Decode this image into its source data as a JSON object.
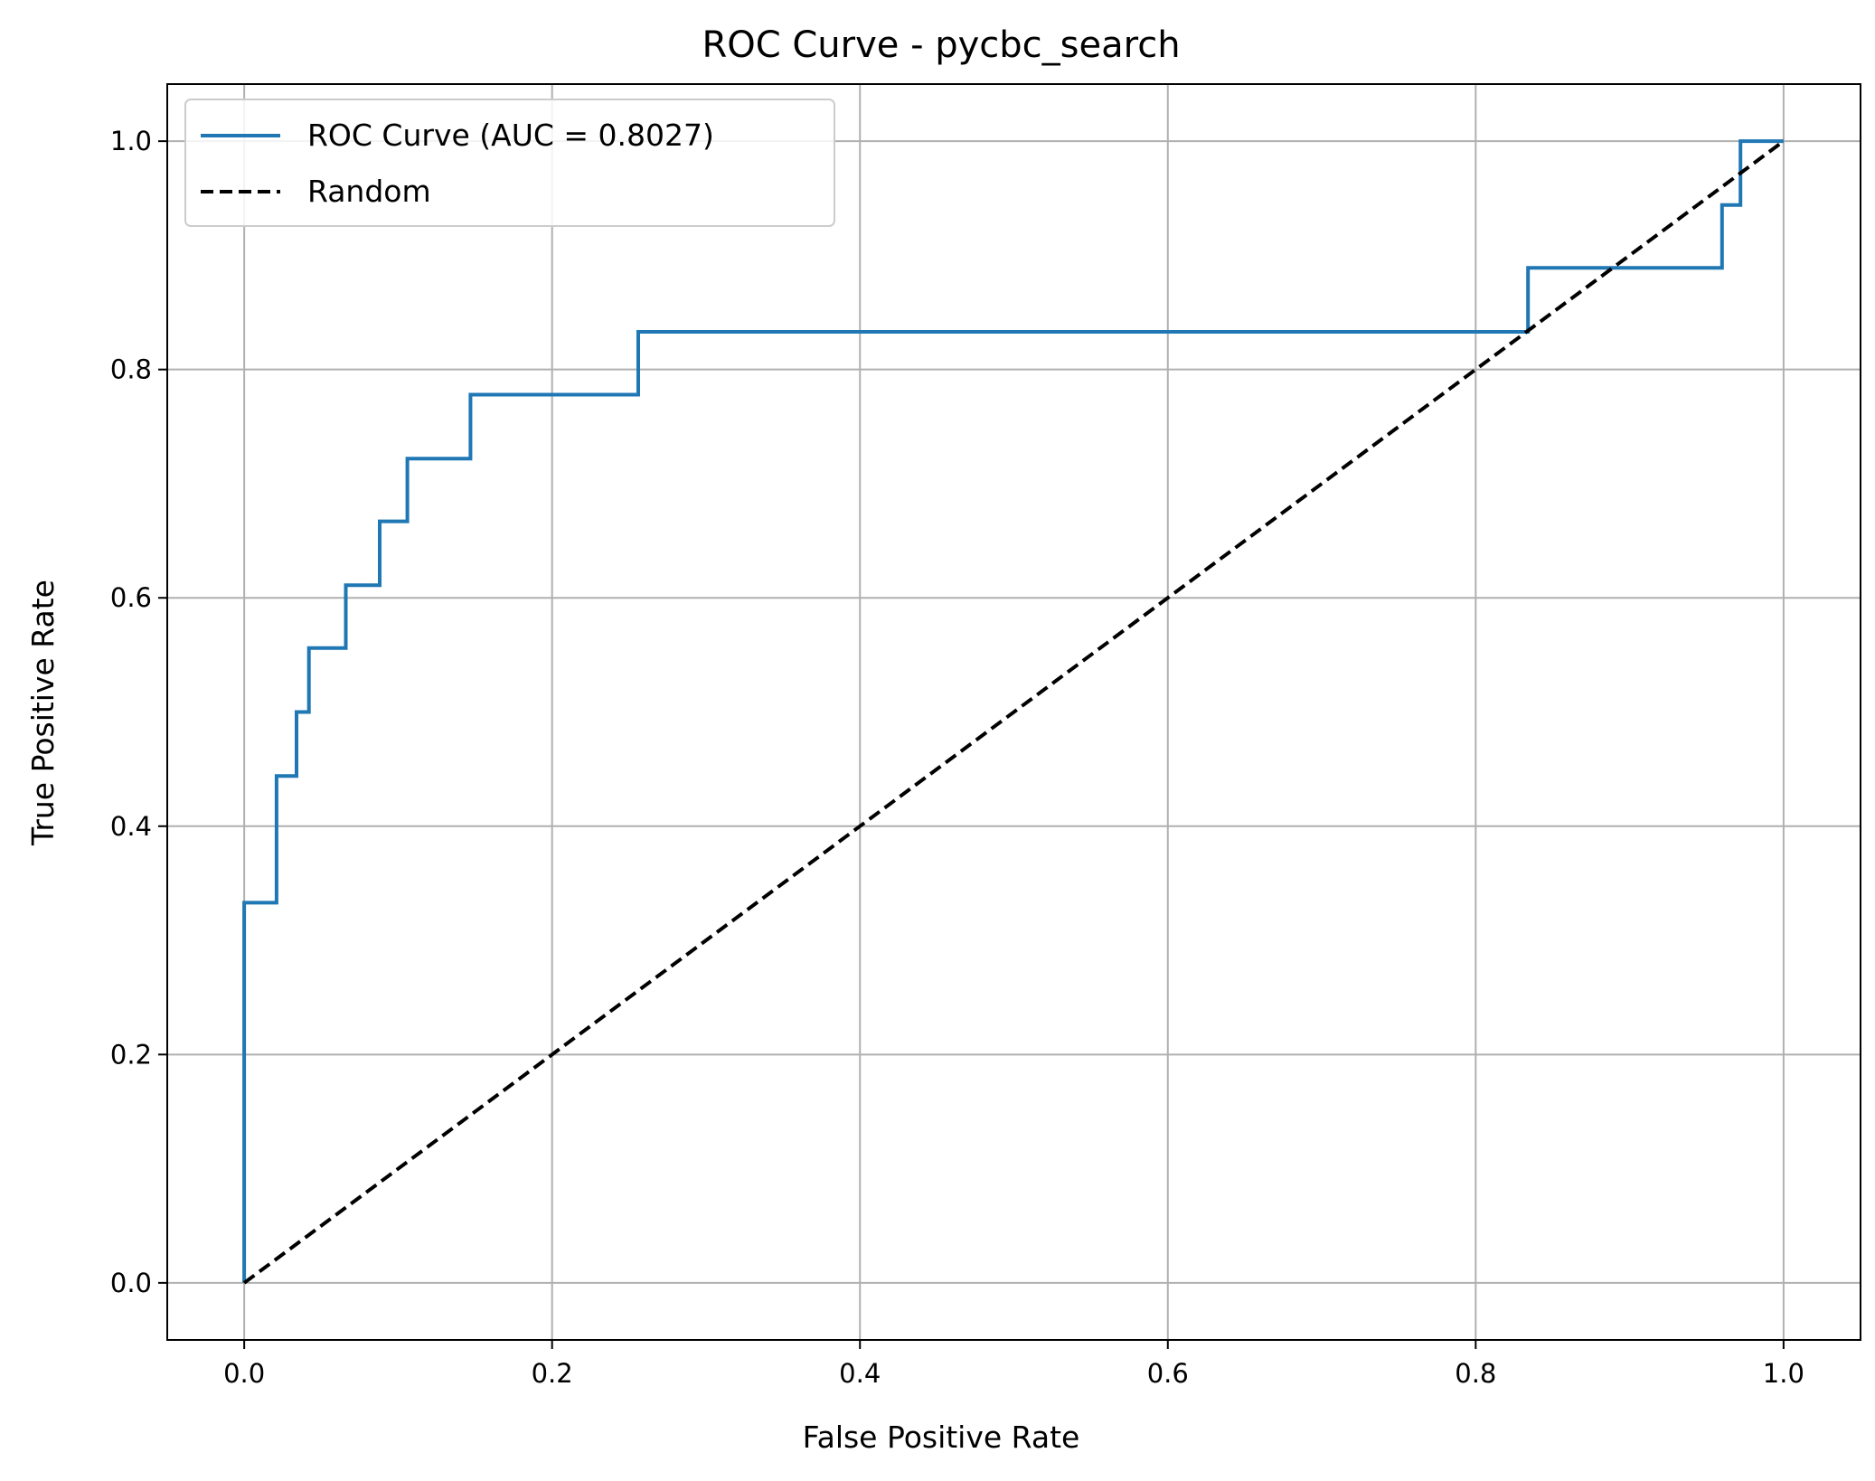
{
  "chart_data": {
    "type": "line",
    "title": "ROC Curve - pycbc_search",
    "xlabel": "False Positive Rate",
    "ylabel": "True Positive Rate",
    "xlim": [
      -0.05,
      1.05
    ],
    "ylim": [
      -0.05,
      1.05
    ],
    "grid": true,
    "legend_position": "top-left",
    "x_ticks": [
      0.0,
      0.2,
      0.4,
      0.6,
      0.8,
      1.0
    ],
    "x_tick_labels": [
      "0.0",
      "0.2",
      "0.4",
      "0.6",
      "0.8",
      "1.0"
    ],
    "y_ticks": [
      0.0,
      0.2,
      0.4,
      0.6,
      0.8,
      1.0
    ],
    "y_tick_labels": [
      "0.0",
      "0.2",
      "0.4",
      "0.6",
      "0.8",
      "1.0"
    ],
    "series": [
      {
        "name": "ROC Curve (AUC = 0.8027)",
        "color": "#1f77b4",
        "style": "solid",
        "step": true,
        "x": [
          0.0,
          0.0,
          0.021,
          0.021,
          0.034,
          0.034,
          0.042,
          0.042,
          0.066,
          0.066,
          0.088,
          0.088,
          0.106,
          0.106,
          0.147,
          0.147,
          0.256,
          0.256,
          0.834,
          0.834,
          0.96,
          0.96,
          0.972,
          0.972,
          1.0
        ],
        "y": [
          0.0,
          0.333,
          0.333,
          0.444,
          0.444,
          0.5,
          0.5,
          0.556,
          0.556,
          0.611,
          0.611,
          0.667,
          0.667,
          0.722,
          0.722,
          0.778,
          0.778,
          0.833,
          0.833,
          0.889,
          0.889,
          0.944,
          0.944,
          1.0,
          1.0
        ]
      },
      {
        "name": "Random",
        "color": "#000000",
        "style": "dashed",
        "step": false,
        "x": [
          0.0,
          1.0
        ],
        "y": [
          0.0,
          1.0
        ]
      }
    ]
  }
}
